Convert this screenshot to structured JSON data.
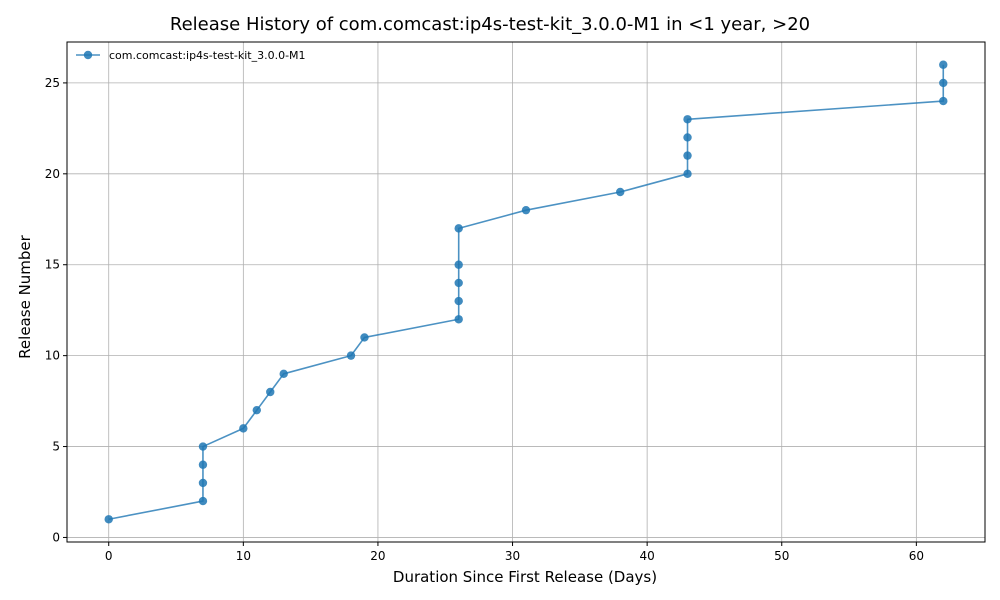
{
  "chart_data": {
    "type": "line",
    "title": "Release History of com.comcast:ip4s-test-kit_3.0.0-M1 in <1 year, >20",
    "xlabel": "Duration Since First Release (Days)",
    "ylabel": "Release Number",
    "xlim": [
      -3.1,
      65.1
    ],
    "ylim": [
      -0.25,
      27.25
    ],
    "xticks": [
      0,
      10,
      20,
      30,
      40,
      50,
      60
    ],
    "yticks": [
      0,
      5,
      10,
      15,
      20,
      25
    ],
    "grid": true,
    "legend_position": "top-left",
    "series": [
      {
        "name": "com.comcast:ip4s-test-kit_3.0.0-M1",
        "color": "#1f77b4",
        "marker": "circle",
        "x": [
          0,
          7,
          7,
          7,
          7,
          10,
          11,
          12,
          13,
          18,
          19,
          26,
          26,
          26,
          26,
          26,
          31,
          38,
          43,
          43,
          43,
          43,
          62,
          62,
          62
        ],
        "y": [
          1,
          2,
          3,
          4,
          5,
          6,
          7,
          8,
          9,
          10,
          11,
          12,
          13,
          14,
          15,
          17,
          18,
          19,
          20,
          21,
          22,
          23,
          24,
          25,
          26
        ]
      }
    ]
  }
}
